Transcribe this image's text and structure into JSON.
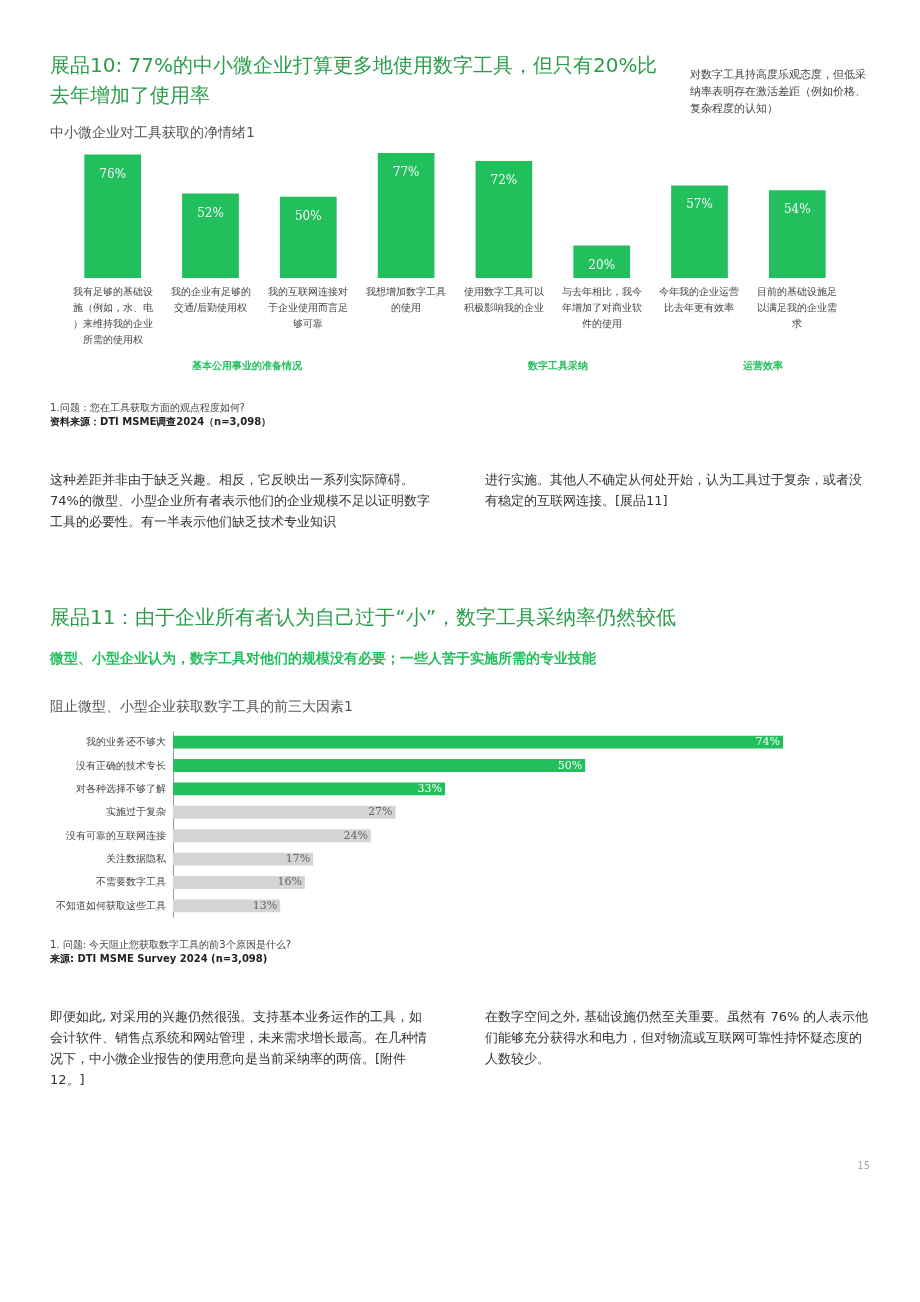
{
  "chart_data": [
    {
      "type": "bar",
      "title": "展品10: 77%的中小微企业打算更多地使用数字工具，但只有20%比去年增加了使用率",
      "subtitle": "中小微企业对工具获取的净情绪1",
      "categories": [
        "我有足够的基础设施（例如，水、电）来维持我的企业所需的使用权",
        "我的企业有足够的交通/后勤使用权",
        "我的互联网连接对于企业使用而言足够可靠",
        "我想增加数字工具的使用",
        "使用数字工具可以积极影响我的企业",
        "与去年相比，我今年增加了对商业软件的使用",
        "今年我的企业运营比去年更有效率",
        "目前的基础设施足以满足我的企业需求"
      ],
      "values": [
        76,
        52,
        50,
        77,
        72,
        20,
        57,
        54
      ],
      "value_labels": [
        "76%",
        "52%",
        "50%",
        "77%",
        "72%",
        "20%",
        "57%",
        "54%"
      ],
      "color": "#22bf5d",
      "annotations": [
        "对数字工具持高度乐观态度，但低采纳率表明存在激活差距（例如价格、复杂程度的认知）",
        "基本公用事业的准备情况",
        "数字工具采纳",
        "运营效率",
        "1.问题：您在工具获取方面的观点程度如何?",
        "资料来源：DTI MSME调查2024（n=3,098）",
        "这种差距并非由于缺乏兴趣。相反，它反映出一系列实际障碍。74%的微型、小型企业所有者表示他们的企业规模不足以证明数字工具的必要性。有一半表示他们缺乏技术专业知识",
        "进行实施。其他人不确定从何处开始，认为工具过于复杂，或者没有稳定的互联网连接。[展品11]"
      ]
    },
    {
      "type": "bar",
      "orientation": "horizontal",
      "title": "展品11：由于企业所有者认为自己过于“小”，数字工具采纳率仍然较低",
      "subtitle": "微型、小型企业认为，数字工具对他们的规模没有必要；一些人苦于实施所需的专业技能",
      "categories": [
        "我的业务还不够大",
        "没有正确的技术专长",
        "对各种选择不够了解",
        "实施过于复杂",
        "没有可靠的互联网连接",
        "关注数据隐私",
        "不需要数字工具",
        "不知道如何获取这些工具"
      ],
      "values": [
        74,
        50,
        33,
        27,
        24,
        17,
        16,
        13
      ],
      "value_labels": [
        "74%",
        "50%",
        "33%",
        "27%",
        "24%",
        "17%",
        "16%",
        "13%"
      ],
      "colors": [
        "#22bf5d",
        "#22bf5d",
        "#22bf5d",
        "#d4d4d4",
        "#d4d4d4",
        "#d4d4d4",
        "#d4d4d4",
        "#d4d4d4"
      ],
      "annotations": [
        "阻止微型、小型企业获取数字工具的前三大因素1",
        "1. 问题: 今天阻止您获取数字工具的前3个原因是什么?",
        "来源: DTI MSME Survey 2024 (n=3,098)",
        "即便如此, 对采用的兴趣仍然很强。支持基本业务运作的工具，如会计软件、销售点系统和网站管理，未来需求增长最高。在几种情况下，中小微企业报告的使用意向是当前采纳率的两倍。[附件 12。]",
        "在数字空间之外, 基础设施仍然至关重要。虽然有 76% 的人表示他们能够充分获得水和电力，但对物流或互联网可靠性持怀疑态度的人数较少。",
        "15"
      ]
    }
  ]
}
